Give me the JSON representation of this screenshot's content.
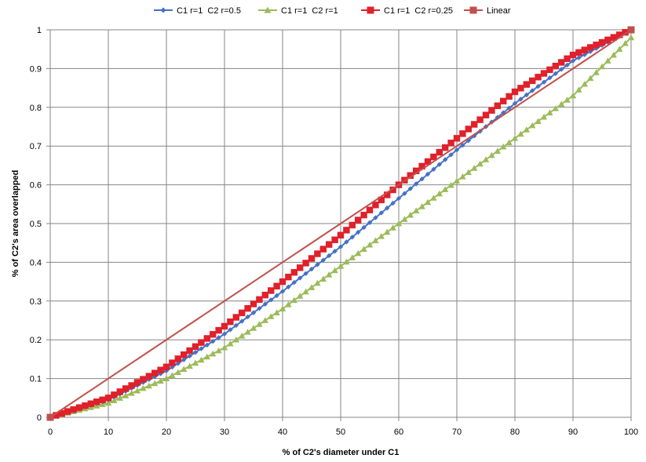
{
  "chart_data": {
    "type": "line",
    "xlabel": "% of C2's diameter under C1",
    "ylabel": "% of C2's area overlapped",
    "xlim": [
      0,
      100
    ],
    "ylim": [
      0,
      1
    ],
    "x_ticks": [
      0,
      10,
      20,
      30,
      40,
      50,
      60,
      70,
      80,
      90,
      100
    ],
    "y_ticks": [
      0,
      0.1,
      0.2,
      0.3,
      0.4,
      0.5,
      0.6,
      0.7,
      0.8,
      0.9,
      1
    ],
    "grid": true,
    "legend_position": "top",
    "series": [
      {
        "name": "C1 r=1  C2 r=0.5",
        "color": "#4472C4",
        "marker": "diamond",
        "x": [
          0,
          10,
          20,
          30,
          40,
          50,
          60,
          70,
          80,
          90,
          100
        ],
        "values": [
          0,
          0.045,
          0.12,
          0.215,
          0.325,
          0.44,
          0.565,
          0.69,
          0.81,
          0.92,
          1
        ]
      },
      {
        "name": "C1 r=1  C2 r=1",
        "color": "#9BBB59",
        "marker": "triangle",
        "x": [
          0,
          10,
          20,
          30,
          40,
          50,
          60,
          70,
          80,
          90,
          100
        ],
        "values": [
          0,
          0.037,
          0.1,
          0.18,
          0.28,
          0.39,
          0.5,
          0.61,
          0.72,
          0.83,
          0.98
        ]
      },
      {
        "name": "C1 r=1  C2 r=0.25",
        "color": "#E0202A",
        "marker": "square",
        "x": [
          0,
          10,
          20,
          30,
          40,
          50,
          60,
          70,
          80,
          90,
          100
        ],
        "values": [
          0,
          0.05,
          0.13,
          0.235,
          0.35,
          0.47,
          0.6,
          0.72,
          0.84,
          0.935,
          1
        ]
      },
      {
        "name": "Linear",
        "color": "#C0504D",
        "marker": "square",
        "x": [
          0,
          100
        ],
        "values": [
          0,
          1
        ]
      }
    ]
  }
}
